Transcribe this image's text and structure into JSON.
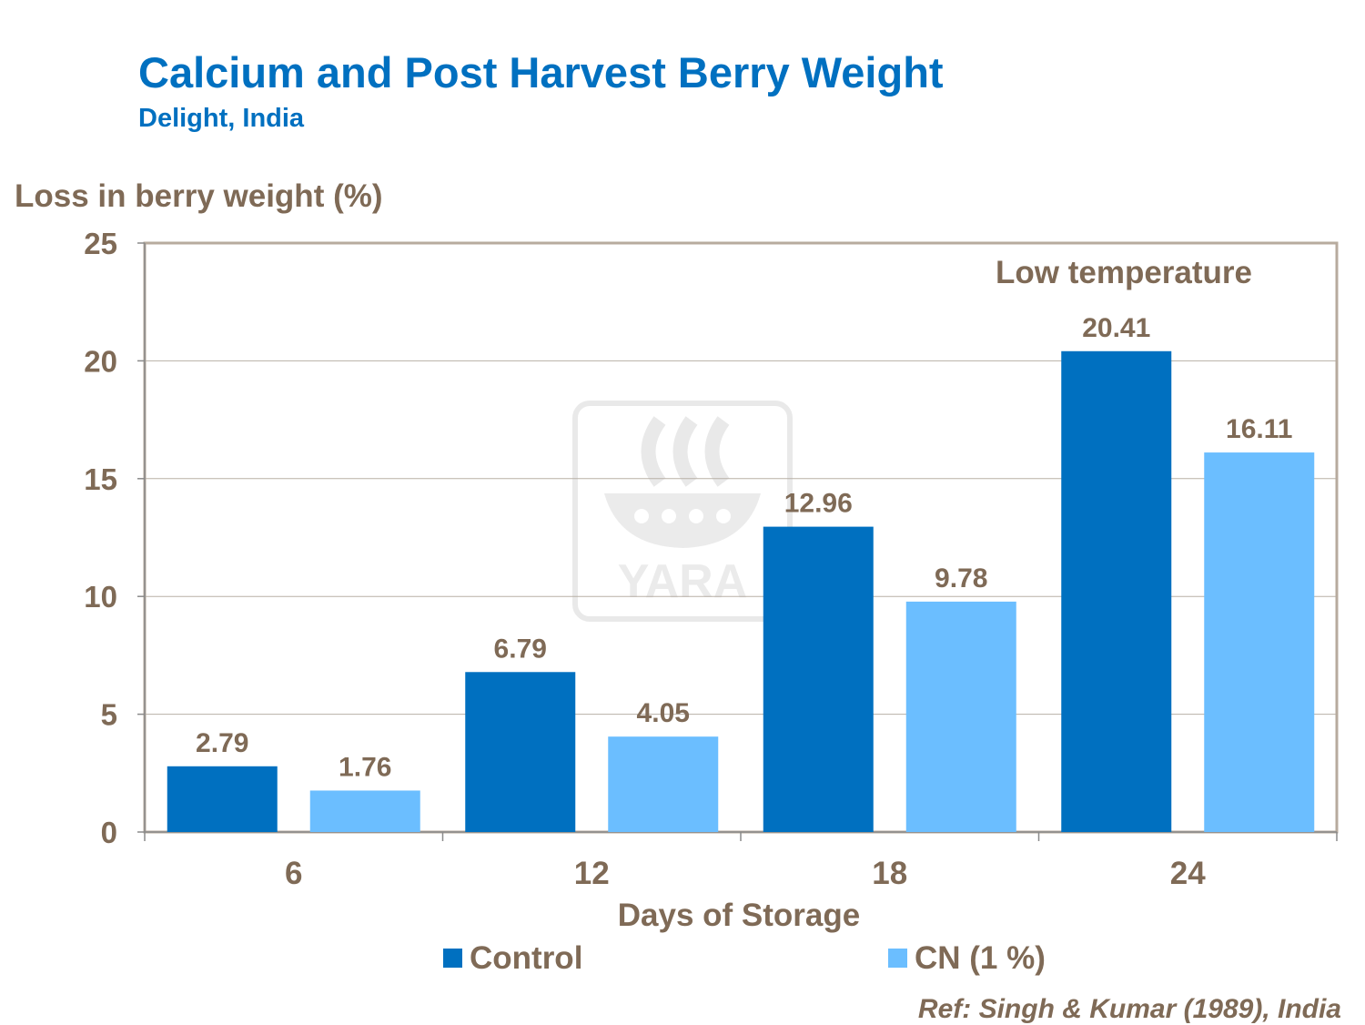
{
  "title": "Calcium and Post Harvest Berry Weight",
  "subtitle": "Delight,  India",
  "reference": "Ref: Singh  &  Kumar  (1989),  India",
  "colors": {
    "control": "#0070c0",
    "cn": "#6bbeff",
    "text": "#7f6a56",
    "title": "#0070c0",
    "frame": "#b7ab9e",
    "grid": "#b8b0a6"
  },
  "chart_data": {
    "type": "bar",
    "title": "Calcium and Post Harvest Berry Weight",
    "subtitle": "Delight,  India",
    "xlabel": "Days of Storage",
    "ylabel": "Loss in berry weight (%)",
    "ylim": [
      0,
      25
    ],
    "yticks": [
      0,
      5,
      10,
      15,
      20,
      25
    ],
    "grid": true,
    "categories": [
      "6",
      "12",
      "18",
      "24"
    ],
    "series": [
      {
        "name": "Control",
        "values": [
          2.79,
          6.79,
          12.96,
          20.41
        ]
      },
      {
        "name": "CN (1 %)",
        "values": [
          1.76,
          4.05,
          9.78,
          16.11
        ]
      }
    ],
    "annotation": "Low temperature",
    "legend": "bottom"
  },
  "watermark": {
    "text": "YARA"
  }
}
